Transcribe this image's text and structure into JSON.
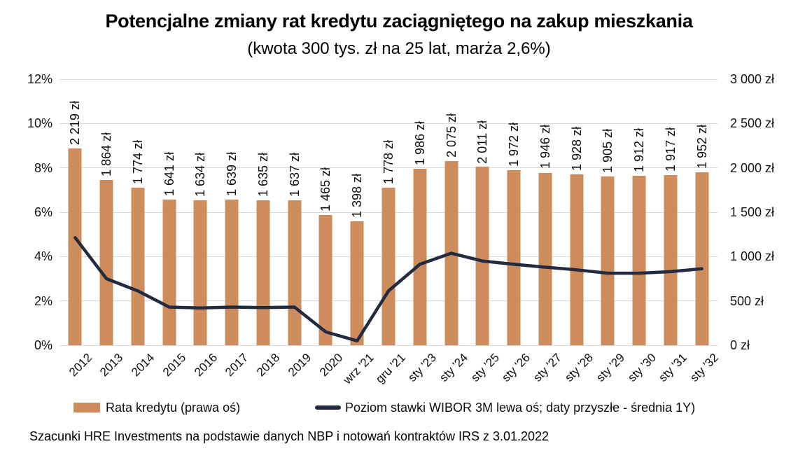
{
  "colors": {
    "bar": "#CE8B5C",
    "line": "#222B40",
    "grid": "#D9D9D9",
    "text": "#0D0D0D"
  },
  "chart_data": {
    "type": "bar+line",
    "title": "Potencjalne zmiany rat kredytu zaciągniętego na zakup mieszkania",
    "subtitle": "(kwota 300 tys. zł na 25 lat, marża 2,6%)",
    "source_note": "Szacunki HRE Investments na podstawie danych NBP i notowań kontraktów IRS z 3.01.2022",
    "categories": [
      "2012",
      "2013",
      "2014",
      "2015",
      "2016",
      "2017",
      "2018",
      "2019",
      "2020",
      "wrz '21",
      "gru '21",
      "sty '23",
      "sty '24",
      "sty '25",
      "sty '26",
      "sty '27",
      "sty '28",
      "sty '29",
      "sty '30",
      "sty '31",
      "sty '32"
    ],
    "series": [
      {
        "name": "Rata kredytu (prawa oś)",
        "type": "bar",
        "axis": "right",
        "values": [
          2219,
          1864,
          1774,
          1641,
          1634,
          1639,
          1635,
          1637,
          1465,
          1398,
          1778,
          1986,
          2075,
          2011,
          1972,
          1946,
          1928,
          1905,
          1912,
          1917,
          1952
        ],
        "value_labels": [
          "2 219 zł",
          "1 864 zł",
          "1 774 zł",
          "1 641 zł",
          "1 634 zł",
          "1 639 zł",
          "1 635 zł",
          "1 637 zł",
          "1 465 zł",
          "1 398 zł",
          "1 778 zł",
          "1 986 zł",
          "2 075 zł",
          "2 011 zł",
          "1 972 zł",
          "1 946 zł",
          "1 928 zł",
          "1 905 zł",
          "1 912 zł",
          "1 917 zł",
          "1 952 zł"
        ]
      },
      {
        "name": "Poziom stawki WIBOR 3M lewa oś; daty przyszłe - średnia 1Y)",
        "type": "line",
        "axis": "left",
        "values": [
          4.85,
          3.0,
          2.45,
          1.72,
          1.68,
          1.72,
          1.7,
          1.72,
          0.6,
          0.2,
          2.45,
          3.65,
          4.15,
          3.8,
          3.65,
          3.52,
          3.4,
          3.25,
          3.25,
          3.32,
          3.45
        ]
      }
    ],
    "left_axis": {
      "unit": "%",
      "min": 0,
      "max": 12,
      "ticks": [
        "0%",
        "2%",
        "4%",
        "6%",
        "8%",
        "10%",
        "12%"
      ]
    },
    "right_axis": {
      "unit": "zł",
      "min": 0,
      "max": 3000,
      "ticks": [
        "0 zł",
        "500 zł",
        "1 000 zł",
        "1 500 zł",
        "2 000 zł",
        "2 500 zł",
        "3 000 zł"
      ]
    },
    "grid": true,
    "legend_position": "bottom"
  }
}
